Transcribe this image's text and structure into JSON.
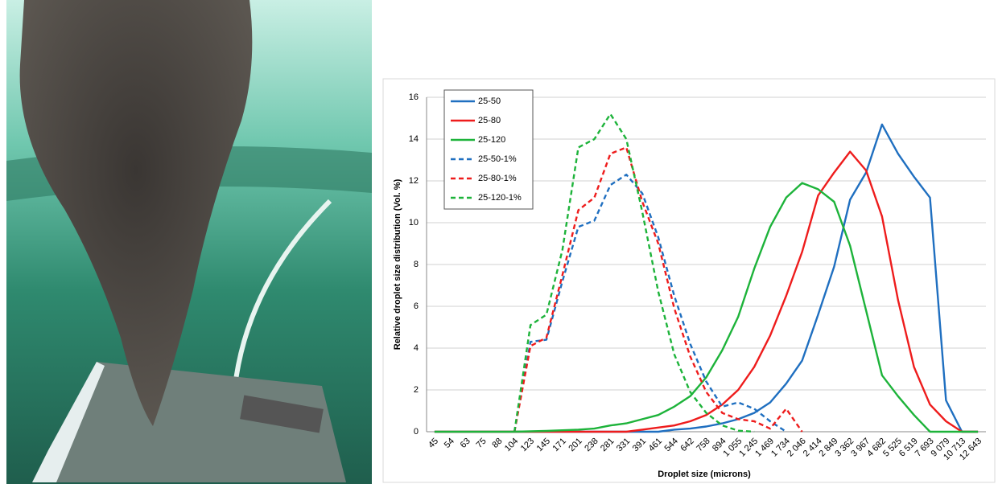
{
  "chart_data": {
    "type": "line",
    "x_label": "Droplet size (microns)",
    "y_label": "Relative droplet size distribution  (Vol. %)",
    "categories": [
      "45",
      "54",
      "63",
      "75",
      "88",
      "104",
      "123",
      "145",
      "171",
      "201",
      "238",
      "281",
      "331",
      "391",
      "461",
      "544",
      "642",
      "758",
      "894",
      "1 055",
      "1 245",
      "1 469",
      "1 734",
      "2 046",
      "2 414",
      "2 849",
      "3 362",
      "3 967",
      "4 682",
      "5 525",
      "6 519",
      "7 693",
      "9 079",
      "10 713",
      "12 643"
    ],
    "ylim": [
      0,
      16
    ],
    "yticks": [
      0,
      2,
      4,
      6,
      8,
      10,
      12,
      14,
      16
    ],
    "grid": true,
    "legend": "top-left",
    "series": [
      {
        "name": "25-50",
        "color": "#1f6fc0",
        "dash": false,
        "values": [
          0,
          0,
          0,
          0,
          0,
          0,
          0,
          0,
          0,
          0,
          0,
          0,
          0,
          0,
          0,
          0.1,
          0.15,
          0.25,
          0.4,
          0.6,
          0.9,
          1.4,
          2.3,
          3.4,
          5.6,
          7.9,
          11.1,
          12.4,
          14.7,
          13.3,
          12.2,
          11.2,
          1.5,
          0,
          0
        ]
      },
      {
        "name": "25-80",
        "color": "#ee1c1c",
        "dash": false,
        "values": [
          0,
          0,
          0,
          0,
          0,
          0,
          0,
          0,
          0,
          0,
          0,
          0,
          0,
          0.1,
          0.2,
          0.3,
          0.5,
          0.8,
          1.3,
          2.0,
          3.1,
          4.6,
          6.5,
          8.6,
          11.3,
          12.4,
          13.4,
          12.5,
          10.3,
          6.3,
          3.1,
          1.3,
          0.5,
          0,
          0
        ]
      },
      {
        "name": "25-120",
        "color": "#1db33a",
        "dash": false,
        "values": [
          0,
          0,
          0,
          0,
          0,
          0,
          0.02,
          0.04,
          0.07,
          0.1,
          0.15,
          0.3,
          0.4,
          0.6,
          0.8,
          1.2,
          1.7,
          2.6,
          3.9,
          5.5,
          7.8,
          9.8,
          11.2,
          11.9,
          11.6,
          11.0,
          8.9,
          5.8,
          2.7,
          1.7,
          0.8,
          0,
          0,
          0,
          0
        ]
      },
      {
        "name": "25-50-1%",
        "color": "#1f6fc0",
        "dash": true,
        "values": [
          null,
          null,
          null,
          null,
          null,
          0,
          4.3,
          4.4,
          7.2,
          9.8,
          10.1,
          11.8,
          12.3,
          11.4,
          9.3,
          6.5,
          4.2,
          2.4,
          1.2,
          1.4,
          1.1,
          0.5,
          0,
          null,
          null,
          null,
          null,
          null,
          null,
          null,
          null,
          null,
          null,
          null,
          null
        ]
      },
      {
        "name": "25-80-1%",
        "color": "#ee1c1c",
        "dash": true,
        "values": [
          null,
          null,
          null,
          null,
          null,
          0,
          4.1,
          4.5,
          7.5,
          10.6,
          11.2,
          13.3,
          13.6,
          11.0,
          9.0,
          5.9,
          3.6,
          1.9,
          0.9,
          0.6,
          0.5,
          0.15,
          1.1,
          0,
          null,
          null,
          null,
          null,
          null,
          null,
          null,
          null,
          null,
          null,
          null
        ]
      },
      {
        "name": "25-120-1%",
        "color": "#1db33a",
        "dash": true,
        "values": [
          null,
          null,
          null,
          null,
          null,
          0,
          5.1,
          5.6,
          8.7,
          13.6,
          14.0,
          15.2,
          14.0,
          10.5,
          6.7,
          3.7,
          1.9,
          0.9,
          0.3,
          0.05,
          0,
          null,
          null,
          null,
          null,
          null,
          null,
          null,
          null,
          null,
          null,
          null,
          null,
          null,
          null
        ]
      }
    ]
  }
}
